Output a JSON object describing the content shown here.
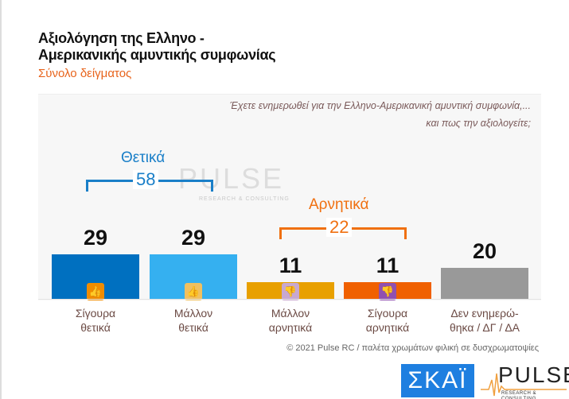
{
  "chart_data": {
    "type": "bar",
    "title": "Αξιολόγηση της Ελληνο - Αμερικανικής αμυντικής συμφωνίας",
    "subtitle": "Σύνολο δείγματος",
    "question": [
      "Έχετε ενημερωθεί για την Ελληνο-Αμερικανική αμυντική συμφωνία,...",
      "και πως την αξιολογείτε;"
    ],
    "categories": [
      [
        "Σίγουρα",
        "θετικά"
      ],
      [
        "Μάλλον",
        "θετικά"
      ],
      [
        "Μάλλον",
        "αρνητικά"
      ],
      [
        "Σίγουρα",
        "αρνητικά"
      ],
      [
        "Δεν ενημερώ-",
        "θηκα / ΔΓ / ΔΑ"
      ]
    ],
    "values": [
      29,
      29,
      11,
      11,
      20
    ],
    "colors": [
      "#0070c0",
      "#35b0f0",
      "#e8a000",
      "#f06000",
      "#999999"
    ],
    "icons": [
      "double-thumbs-up",
      "thumb-up",
      "thumb-down",
      "double-thumbs-down",
      ""
    ],
    "icon_colors": [
      "#f08c00",
      "#f0c060",
      "#c8a8d0",
      "#9050b0",
      ""
    ],
    "groups": [
      {
        "label": "Θετικά",
        "value": "58",
        "color": "#1a7fc8"
      },
      {
        "label": "Αρνητικά",
        "value": "22",
        "color": "#f07010"
      }
    ],
    "ylim": [
      0,
      35
    ]
  },
  "watermark": {
    "name": "PULSE",
    "tag": "RESEARCH & CONSULTING"
  },
  "footer": "© 2021 Pulse RC  /  παλέτα χρωμάτων φιλική σε δυσχρωματοψίες",
  "logos": {
    "skai": "ΣΚΑΪ",
    "pulse": "PULSE",
    "pulse_tag": "RESEARCH & CONSULTING"
  }
}
